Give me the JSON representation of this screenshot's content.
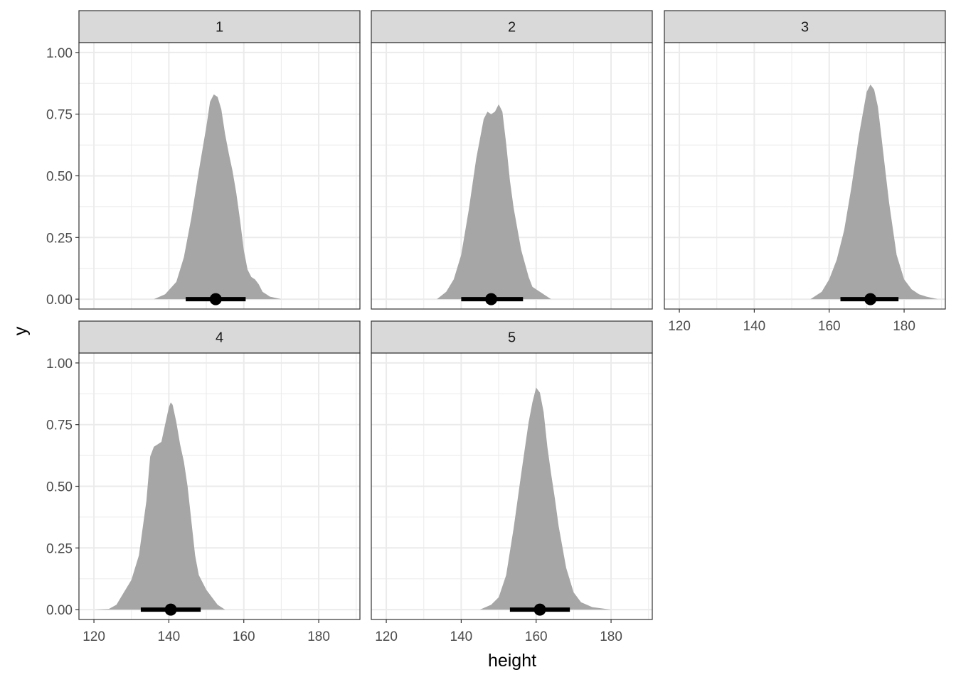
{
  "chart_data": {
    "type": "area",
    "xlabel": "height",
    "ylabel": "y",
    "xlim": [
      116,
      191
    ],
    "ylim": [
      -0.04,
      1.04
    ],
    "x_ticks": [
      120,
      140,
      160,
      180
    ],
    "x_tick_labels": [
      "120",
      "140",
      "160",
      "180"
    ],
    "y_ticks": [
      0,
      0.25,
      0.5,
      0.75,
      1
    ],
    "y_tick_labels": [
      "0.00",
      "0.25",
      "0.50",
      "0.75",
      "1.00"
    ],
    "grid": true,
    "colors": {
      "density_fill": "#a6a6a6",
      "interval": "#000000",
      "strip_bg": "#d9d9d9",
      "grid": "#ebebeb"
    },
    "panels": [
      {
        "label": "1",
        "interval": {
          "point": 152.5,
          "lower": 144.5,
          "upper": 160.5
        },
        "density": [
          [
            136,
            0
          ],
          [
            139,
            0.02
          ],
          [
            142,
            0.07
          ],
          [
            144,
            0.17
          ],
          [
            146,
            0.33
          ],
          [
            148,
            0.52
          ],
          [
            150,
            0.7
          ],
          [
            151,
            0.8
          ],
          [
            152,
            0.83
          ],
          [
            153,
            0.82
          ],
          [
            154,
            0.77
          ],
          [
            155,
            0.67
          ],
          [
            156,
            0.59
          ],
          [
            157,
            0.52
          ],
          [
            158,
            0.43
          ],
          [
            159,
            0.32
          ],
          [
            160,
            0.2
          ],
          [
            161,
            0.12
          ],
          [
            162,
            0.09
          ],
          [
            163,
            0.08
          ],
          [
            164,
            0.06
          ],
          [
            165,
            0.03
          ],
          [
            167,
            0.01
          ],
          [
            170,
            0
          ]
        ]
      },
      {
        "label": "2",
        "interval": {
          "point": 148,
          "lower": 140,
          "upper": 156.5
        },
        "density": [
          [
            133.5,
            0
          ],
          [
            136,
            0.03
          ],
          [
            138,
            0.08
          ],
          [
            140,
            0.18
          ],
          [
            142,
            0.36
          ],
          [
            144,
            0.57
          ],
          [
            146,
            0.73
          ],
          [
            147,
            0.76
          ],
          [
            148,
            0.75
          ],
          [
            149,
            0.76
          ],
          [
            150,
            0.79
          ],
          [
            151,
            0.76
          ],
          [
            152,
            0.63
          ],
          [
            153,
            0.48
          ],
          [
            154,
            0.37
          ],
          [
            156,
            0.2
          ],
          [
            158,
            0.09
          ],
          [
            159,
            0.05
          ],
          [
            160,
            0.04
          ],
          [
            162,
            0.02
          ],
          [
            164,
            0
          ]
        ]
      },
      {
        "label": "3",
        "interval": {
          "point": 171,
          "lower": 163,
          "upper": 178.5
        },
        "density": [
          [
            155,
            0
          ],
          [
            158,
            0.03
          ],
          [
            160,
            0.08
          ],
          [
            162,
            0.16
          ],
          [
            164,
            0.28
          ],
          [
            166,
            0.46
          ],
          [
            168,
            0.67
          ],
          [
            170,
            0.84
          ],
          [
            171,
            0.87
          ],
          [
            172,
            0.85
          ],
          [
            173,
            0.78
          ],
          [
            174,
            0.65
          ],
          [
            175,
            0.52
          ],
          [
            176,
            0.39
          ],
          [
            178,
            0.18
          ],
          [
            180,
            0.08
          ],
          [
            182,
            0.04
          ],
          [
            184,
            0.02
          ],
          [
            186,
            0.01
          ],
          [
            189,
            0
          ]
        ]
      },
      {
        "label": "4",
        "interval": {
          "point": 140.5,
          "lower": 132.5,
          "upper": 148.5
        },
        "density": [
          [
            120,
            0
          ],
          [
            124,
            0.003
          ],
          [
            126,
            0.02
          ],
          [
            128,
            0.07
          ],
          [
            130,
            0.12
          ],
          [
            132,
            0.22
          ],
          [
            134,
            0.44
          ],
          [
            135,
            0.62
          ],
          [
            136,
            0.66
          ],
          [
            137,
            0.67
          ],
          [
            138,
            0.68
          ],
          [
            139,
            0.75
          ],
          [
            140,
            0.82
          ],
          [
            140.5,
            0.84
          ],
          [
            141,
            0.83
          ],
          [
            142,
            0.76
          ],
          [
            143,
            0.67
          ],
          [
            144,
            0.6
          ],
          [
            145,
            0.5
          ],
          [
            146,
            0.36
          ],
          [
            147,
            0.22
          ],
          [
            148,
            0.14
          ],
          [
            150,
            0.08
          ],
          [
            152,
            0.04
          ],
          [
            153,
            0.02
          ],
          [
            155,
            0
          ]
        ]
      },
      {
        "label": "5",
        "interval": {
          "point": 161,
          "lower": 153,
          "upper": 169
        },
        "density": [
          [
            145,
            0
          ],
          [
            148,
            0.02
          ],
          [
            150,
            0.05
          ],
          [
            152,
            0.14
          ],
          [
            154,
            0.33
          ],
          [
            156,
            0.55
          ],
          [
            158,
            0.76
          ],
          [
            159,
            0.84
          ],
          [
            160,
            0.9
          ],
          [
            161,
            0.88
          ],
          [
            162,
            0.8
          ],
          [
            163,
            0.66
          ],
          [
            164,
            0.55
          ],
          [
            165,
            0.45
          ],
          [
            166,
            0.34
          ],
          [
            168,
            0.17
          ],
          [
            170,
            0.07
          ],
          [
            172,
            0.03
          ],
          [
            175,
            0.01
          ],
          [
            180,
            0
          ]
        ]
      }
    ]
  }
}
